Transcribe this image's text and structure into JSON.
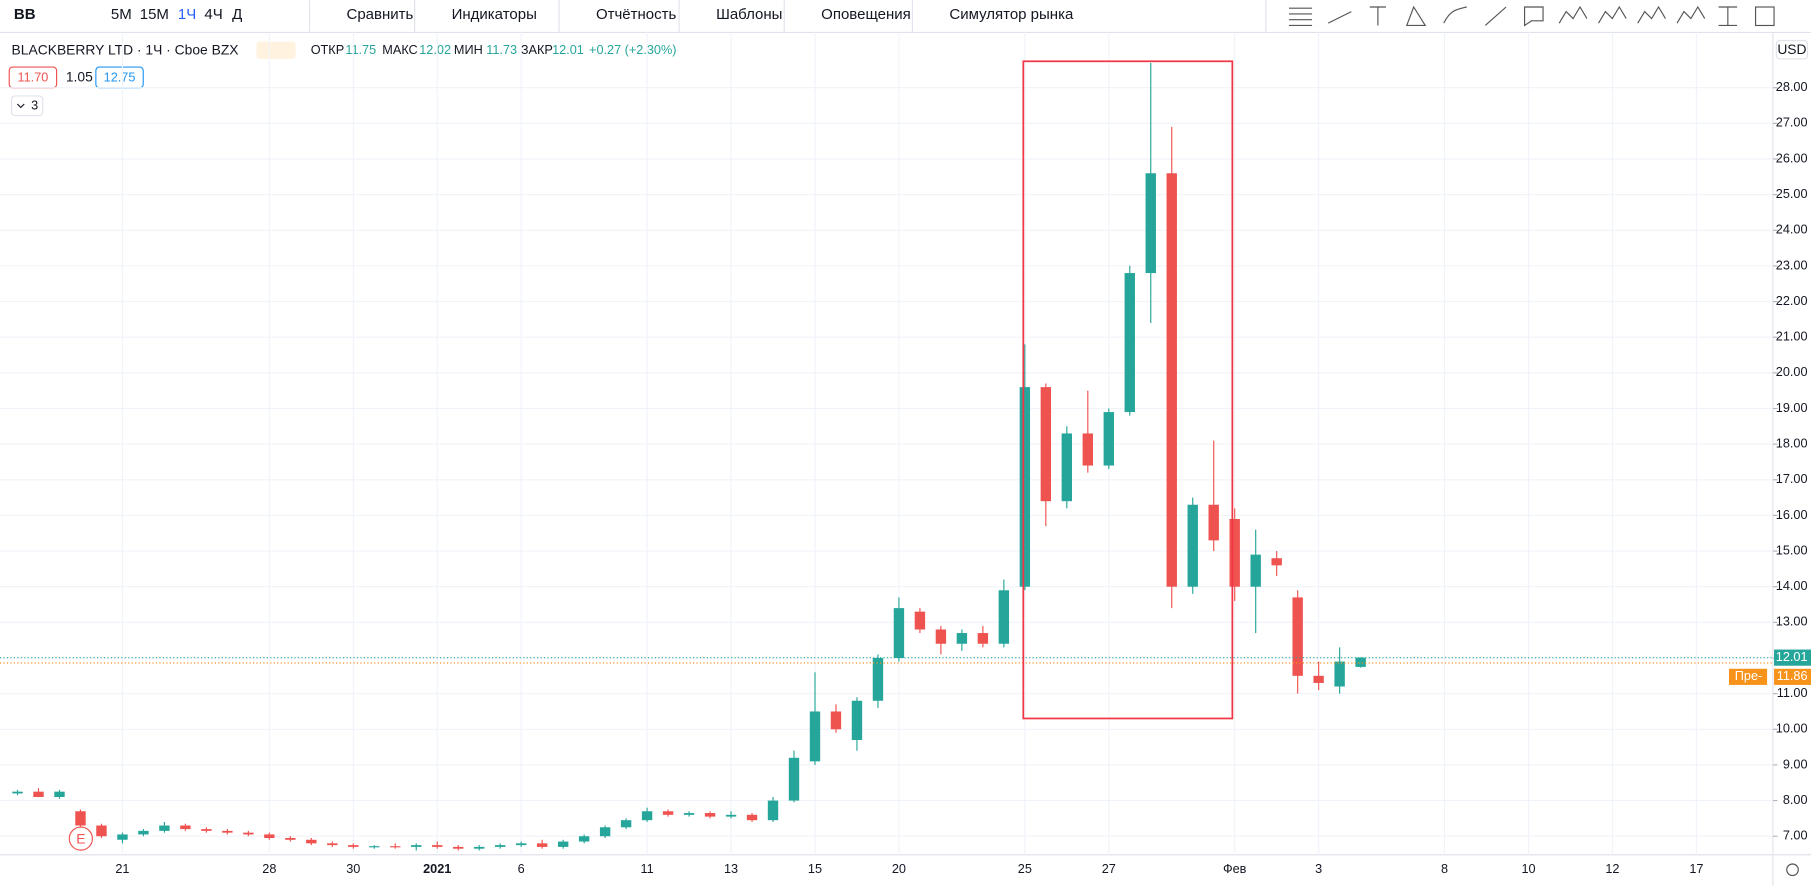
{
  "toolbar": {
    "symbol": "BB",
    "intervals": [
      "5М",
      "15М",
      "1Ч",
      "4Ч",
      "Д"
    ],
    "active_interval": 2,
    "buttons": [
      "Сравнить",
      "Индикаторы",
      "Отчётность",
      "Шаблоны",
      "Оповещения",
      "Симулятор рынка"
    ]
  },
  "header": {
    "title": "BLACKBERRY LTD · 1Ч · Cboe BZX",
    "open_label": "ОТКР",
    "high_label": "МАКС",
    "low_label": "МИН",
    "close_label": "ЗАКР",
    "change": "+0.27 (+2.30%)",
    "bid": "11.70",
    "spread": "1.05",
    "ask": "12.75",
    "indicators_count": "3"
  },
  "chart_data": {
    "type": "candlestick",
    "currency": "USD",
    "earnings_marker": "E",
    "up_color": "#26a69a",
    "down_color": "#ef5350",
    "grid": true,
    "categories": [
      null,
      null,
      null,
      null,
      null,
      null,
      "21",
      null,
      null,
      null,
      null,
      null,
      null,
      "28",
      null,
      null,
      null,
      "30",
      null,
      null,
      null,
      "2021",
      null,
      null,
      null,
      "6",
      null,
      null,
      null,
      null,
      null,
      "11",
      null,
      null,
      null,
      "13",
      null,
      null,
      null,
      "15",
      null,
      null,
      null,
      "20",
      null,
      null,
      null,
      null,
      null,
      "25",
      null,
      null,
      null,
      "27",
      null,
      null,
      null,
      null,
      null,
      "Фев",
      null,
      null,
      null,
      "3",
      null,
      null,
      null,
      null,
      null,
      "8",
      null,
      null,
      null,
      "10",
      null,
      null,
      null,
      "12",
      null,
      null,
      null,
      "17",
      null,
      null
    ],
    "open": [
      null,
      8.2,
      8.25,
      8.1,
      7.7,
      7.3,
      6.9,
      7.05,
      7.15,
      7.3,
      7.2,
      7.15,
      7.1,
      7.05,
      6.95,
      6.9,
      6.8,
      6.75,
      6.7,
      6.72,
      6.7,
      6.75,
      6.7,
      6.65,
      6.7,
      6.75,
      6.8,
      6.7,
      6.85,
      7.0,
      7.25,
      7.45,
      7.7,
      7.6,
      7.65,
      7.55,
      7.6,
      7.45,
      8.0,
      9.1,
      10.5,
      9.7,
      10.8,
      12.0,
      13.3,
      12.8,
      12.4,
      12.7,
      12.4,
      14.0,
      19.6,
      16.4,
      18.3,
      17.4,
      18.9,
      22.8,
      25.6,
      14.0,
      16.3,
      15.9,
      14.0,
      14.8,
      13.7,
      11.5,
      11.2,
      11.75,
      null,
      null,
      null,
      null,
      null,
      null,
      null,
      null,
      null,
      null,
      null,
      null,
      null,
      null,
      null,
      null,
      null,
      null
    ],
    "high": [
      null,
      8.3,
      8.35,
      8.3,
      7.75,
      7.35,
      7.1,
      7.2,
      7.4,
      7.35,
      7.25,
      7.2,
      7.15,
      7.1,
      7.0,
      6.95,
      6.85,
      6.8,
      6.75,
      6.8,
      6.8,
      6.85,
      6.75,
      6.75,
      6.8,
      6.85,
      6.9,
      6.9,
      7.05,
      7.3,
      7.5,
      7.8,
      7.75,
      7.7,
      7.7,
      7.7,
      7.65,
      8.1,
      9.4,
      11.6,
      10.7,
      10.9,
      12.1,
      13.7,
      13.4,
      12.9,
      12.8,
      12.9,
      14.2,
      20.8,
      19.7,
      18.5,
      19.5,
      19.0,
      23.0,
      28.7,
      26.9,
      16.5,
      18.1,
      16.2,
      15.6,
      15.0,
      13.9,
      11.9,
      12.3,
      12.02,
      null,
      null,
      null,
      null,
      null,
      null,
      null,
      null,
      null,
      null,
      null,
      null,
      null,
      null,
      null,
      null,
      null,
      null
    ],
    "low": [
      null,
      8.15,
      8.1,
      8.05,
      7.25,
      6.95,
      6.8,
      7.0,
      7.1,
      7.15,
      7.1,
      7.05,
      7.0,
      6.9,
      6.85,
      6.75,
      6.7,
      6.65,
      6.65,
      6.65,
      6.6,
      6.65,
      6.6,
      6.6,
      6.65,
      6.7,
      6.65,
      6.65,
      6.8,
      6.95,
      7.2,
      7.4,
      7.55,
      7.55,
      7.5,
      7.5,
      7.4,
      7.4,
      7.95,
      9.0,
      9.9,
      9.4,
      10.6,
      11.9,
      12.7,
      12.1,
      12.2,
      12.3,
      12.3,
      13.9,
      15.7,
      16.2,
      17.2,
      17.3,
      18.8,
      21.4,
      13.4,
      13.8,
      15.0,
      13.6,
      12.7,
      14.3,
      11.0,
      11.1,
      11.0,
      11.73,
      null,
      null,
      null,
      null,
      null,
      null,
      null,
      null,
      null,
      null,
      null,
      null,
      null,
      null,
      null,
      null,
      null,
      null
    ],
    "close": [
      null,
      8.25,
      8.1,
      8.25,
      7.3,
      7.0,
      7.05,
      7.15,
      7.3,
      7.2,
      7.15,
      7.1,
      7.05,
      6.95,
      6.9,
      6.8,
      6.75,
      6.7,
      6.72,
      6.7,
      6.75,
      6.7,
      6.65,
      6.7,
      6.75,
      6.8,
      6.7,
      6.85,
      7.0,
      7.25,
      7.45,
      7.7,
      7.6,
      7.65,
      7.55,
      7.6,
      7.45,
      8.0,
      9.2,
      10.5,
      10.0,
      10.8,
      12.0,
      13.4,
      12.8,
      12.4,
      12.7,
      12.4,
      13.9,
      19.6,
      16.4,
      18.3,
      17.4,
      18.9,
      22.8,
      25.6,
      14.0,
      16.3,
      15.3,
      14.0,
      14.9,
      14.6,
      11.5,
      11.3,
      11.9,
      12.01,
      null,
      null,
      null,
      null,
      null,
      null,
      null,
      null,
      null,
      null,
      null,
      null,
      null,
      null,
      null,
      null,
      null,
      null
    ],
    "ylim": [
      6.48,
      29.39
    ],
    "yticks": [
      {
        "value": 7,
        "label": "7.00"
      },
      {
        "value": 8,
        "label": "8.00"
      },
      {
        "value": 9,
        "label": "9.00"
      },
      {
        "value": 10,
        "label": "10.00"
      },
      {
        "value": 11,
        "label": "11.00"
      },
      {
        "value": 12,
        "label": "12.00"
      },
      {
        "value": 13,
        "label": "13.00"
      },
      {
        "value": 14,
        "label": "14.00"
      },
      {
        "value": 15,
        "label": "15.00"
      },
      {
        "value": 16,
        "label": "16.00"
      },
      {
        "value": 17,
        "label": "17.00"
      },
      {
        "value": 18,
        "label": "18.00"
      },
      {
        "value": 19,
        "label": "19.00"
      },
      {
        "value": 20,
        "label": "20.00"
      },
      {
        "value": 21,
        "label": "21.00"
      },
      {
        "value": 22,
        "label": "22.00"
      },
      {
        "value": 23,
        "label": "23.00"
      },
      {
        "value": 24,
        "label": "24.00"
      },
      {
        "value": 25,
        "label": "25.00"
      },
      {
        "value": 26,
        "label": "26.00"
      },
      {
        "value": 27,
        "label": "27.00"
      },
      {
        "value": 28,
        "label": "28.00"
      }
    ],
    "last_price": 12.01,
    "last_color": "#26a69a",
    "premarket_label": "Пре-",
    "premarket_price": 11.86,
    "premarket_color": "#f7931a"
  }
}
